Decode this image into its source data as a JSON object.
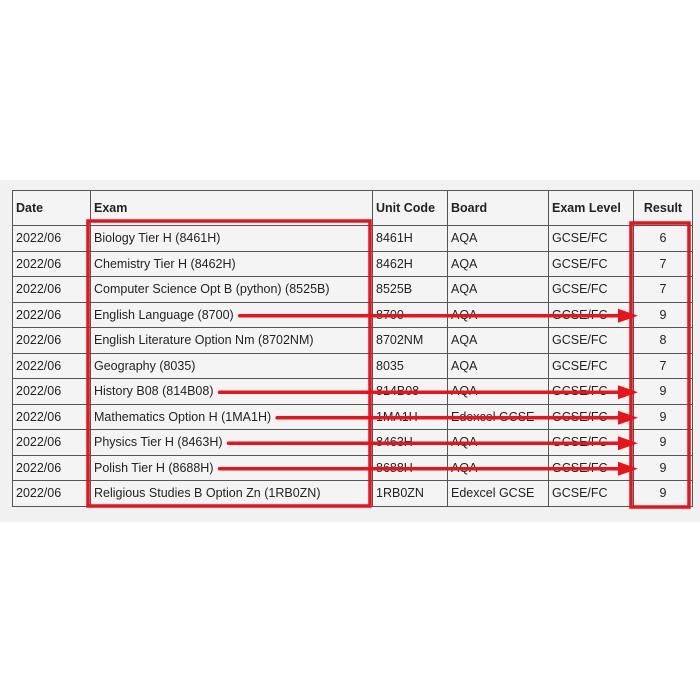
{
  "table": {
    "headers": [
      "Date",
      "Exam",
      "Unit Code",
      "Board",
      "Exam Level",
      "Result"
    ],
    "rows": [
      [
        "2022/06",
        "Biology Tier H (8461H)",
        "8461H",
        "AQA",
        "GCSE/FC",
        "6"
      ],
      [
        "2022/06",
        "Chemistry Tier H (8462H)",
        "8462H",
        "AQA",
        "GCSE/FC",
        "7"
      ],
      [
        "2022/06",
        "Computer Science Opt B (python) (8525B)",
        "8525B",
        "AQA",
        "GCSE/FC",
        "7"
      ],
      [
        "2022/06",
        "English Language (8700)",
        "8700",
        "AQA",
        "GCSE/FC",
        "9"
      ],
      [
        "2022/06",
        "English Literature Option Nm (8702NM)",
        "8702NM",
        "AQA",
        "GCSE/FC",
        "8"
      ],
      [
        "2022/06",
        "Geography (8035)",
        "8035",
        "AQA",
        "GCSE/FC",
        "7"
      ],
      [
        "2022/06",
        "History B08 (814B08)",
        "814B08",
        "AQA",
        "GCSE/FC",
        "9"
      ],
      [
        "2022/06",
        "Mathematics Option H (1MA1H)",
        "1MA1H",
        "Edexcel GCSE",
        "GCSE/FC",
        "9"
      ],
      [
        "2022/06",
        "Physics Tier H (8463H)",
        "8463H",
        "AQA",
        "GCSE/FC",
        "9"
      ],
      [
        "2022/06",
        "Polish Tier H (8688H)",
        "8688H",
        "AQA",
        "GCSE/FC",
        "9"
      ],
      [
        "2022/06",
        "Religious Studies B Option Zn (1RB0ZN)",
        "1RB0ZN",
        "Edexcel GCSE",
        "GCSE/FC",
        "9"
      ]
    ]
  },
  "annotations": {
    "color": "#e8141c",
    "arrow_rows": [
      3,
      6,
      7,
      8,
      9
    ]
  }
}
